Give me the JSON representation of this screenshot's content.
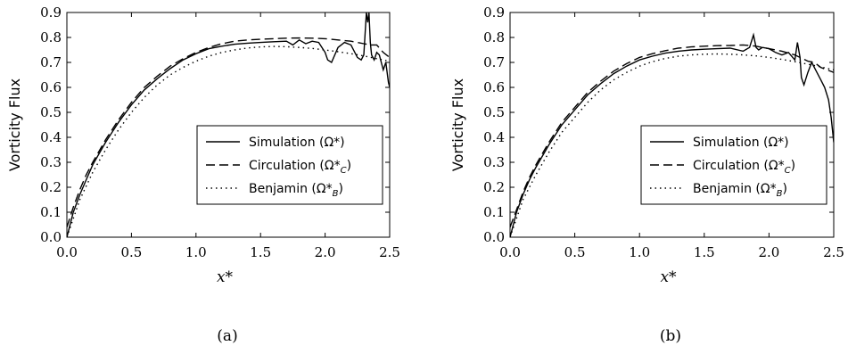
{
  "chart_data": [
    {
      "type": "line",
      "caption": "(a)",
      "xlabel": "x*",
      "ylabel": "Vorticity Flux",
      "xlim": [
        0.0,
        2.5
      ],
      "ylim": [
        0.0,
        0.9
      ],
      "xticks": [
        "0.0",
        "0.5",
        "1.0",
        "1.5",
        "2.0",
        "2.5"
      ],
      "yticks": [
        "0.0",
        "0.1",
        "0.2",
        "0.3",
        "0.4",
        "0.5",
        "0.6",
        "0.7",
        "0.8",
        "0.9"
      ],
      "legend": {
        "placement": "lower-right"
      },
      "series": [
        {
          "name": "Simulation (Ω*)",
          "style": "solid",
          "x": [
            0.0,
            0.05,
            0.1,
            0.15,
            0.2,
            0.3,
            0.4,
            0.5,
            0.6,
            0.7,
            0.8,
            0.9,
            1.0,
            1.1,
            1.2,
            1.3,
            1.4,
            1.5,
            1.6,
            1.7,
            1.75,
            1.8,
            1.85,
            1.9,
            1.95,
            2.0,
            2.02,
            2.05,
            2.1,
            2.15,
            2.2,
            2.25,
            2.28,
            2.3,
            2.32,
            2.33,
            2.34,
            2.35,
            2.36,
            2.38,
            2.4,
            2.42,
            2.45,
            2.47,
            2.49,
            2.5
          ],
          "y": [
            0.0,
            0.1,
            0.17,
            0.23,
            0.29,
            0.38,
            0.46,
            0.53,
            0.59,
            0.635,
            0.675,
            0.71,
            0.735,
            0.755,
            0.765,
            0.773,
            0.777,
            0.78,
            0.783,
            0.785,
            0.77,
            0.79,
            0.775,
            0.785,
            0.78,
            0.74,
            0.71,
            0.7,
            0.76,
            0.78,
            0.77,
            0.72,
            0.71,
            0.73,
            0.9,
            0.86,
            0.9,
            0.78,
            0.73,
            0.71,
            0.74,
            0.73,
            0.67,
            0.7,
            0.62,
            0.6
          ]
        },
        {
          "name": "Circulation (Ω*C)",
          "style": "dashed",
          "x": [
            0.0,
            0.05,
            0.1,
            0.15,
            0.2,
            0.3,
            0.4,
            0.5,
            0.6,
            0.7,
            0.8,
            0.9,
            1.0,
            1.1,
            1.2,
            1.3,
            1.4,
            1.5,
            1.6,
            1.7,
            1.8,
            1.9,
            2.0,
            2.1,
            2.2,
            2.3,
            2.35,
            2.4,
            2.45,
            2.5
          ],
          "y": [
            0.04,
            0.12,
            0.19,
            0.25,
            0.3,
            0.39,
            0.47,
            0.54,
            0.6,
            0.645,
            0.685,
            0.715,
            0.74,
            0.76,
            0.775,
            0.785,
            0.79,
            0.793,
            0.795,
            0.797,
            0.798,
            0.797,
            0.795,
            0.79,
            0.785,
            0.775,
            0.77,
            0.77,
            0.74,
            0.72
          ]
        },
        {
          "name": "Benjamin (Ω*B)",
          "style": "dotted",
          "x": [
            0.0,
            0.1,
            0.2,
            0.3,
            0.4,
            0.5,
            0.6,
            0.7,
            0.8,
            0.9,
            1.0,
            1.1,
            1.2,
            1.3,
            1.4,
            1.5,
            1.6,
            1.7,
            1.8,
            1.9,
            2.0,
            2.1,
            2.2,
            2.3,
            2.4,
            2.5
          ],
          "y": [
            0.0,
            0.15,
            0.26,
            0.35,
            0.43,
            0.5,
            0.56,
            0.61,
            0.65,
            0.68,
            0.705,
            0.725,
            0.74,
            0.75,
            0.758,
            0.762,
            0.764,
            0.763,
            0.76,
            0.756,
            0.75,
            0.743,
            0.735,
            0.726,
            0.715,
            0.705
          ]
        }
      ]
    },
    {
      "type": "line",
      "caption": "(b)",
      "xlabel": "x*",
      "ylabel": "Vorticity Flux",
      "xlim": [
        0.0,
        2.5
      ],
      "ylim": [
        0.0,
        0.9
      ],
      "xticks": [
        "0.0",
        "0.5",
        "1.0",
        "1.5",
        "2.0",
        "2.5"
      ],
      "yticks": [
        "0.0",
        "0.1",
        "0.2",
        "0.3",
        "0.4",
        "0.5",
        "0.6",
        "0.7",
        "0.8",
        "0.9"
      ],
      "legend": {
        "placement": "lower-right"
      },
      "series": [
        {
          "name": "Simulation (Ω*)",
          "style": "solid",
          "x": [
            0.0,
            0.05,
            0.1,
            0.15,
            0.2,
            0.3,
            0.4,
            0.5,
            0.6,
            0.7,
            0.8,
            0.9,
            1.0,
            1.1,
            1.2,
            1.3,
            1.4,
            1.5,
            1.6,
            1.7,
            1.8,
            1.85,
            1.88,
            1.9,
            1.92,
            1.95,
            2.0,
            2.05,
            2.1,
            2.15,
            2.2,
            2.22,
            2.24,
            2.25,
            2.27,
            2.3,
            2.33,
            2.36,
            2.4,
            2.43,
            2.46,
            2.48,
            2.5
          ],
          "y": [
            0.0,
            0.1,
            0.17,
            0.23,
            0.28,
            0.37,
            0.45,
            0.51,
            0.57,
            0.615,
            0.655,
            0.685,
            0.71,
            0.725,
            0.737,
            0.745,
            0.75,
            0.753,
            0.755,
            0.757,
            0.745,
            0.76,
            0.81,
            0.76,
            0.75,
            0.76,
            0.755,
            0.74,
            0.73,
            0.74,
            0.71,
            0.78,
            0.72,
            0.64,
            0.61,
            0.66,
            0.7,
            0.67,
            0.63,
            0.6,
            0.55,
            0.48,
            0.38
          ]
        },
        {
          "name": "Circulation (Ω*C)",
          "style": "dashed",
          "x": [
            0.0,
            0.05,
            0.1,
            0.15,
            0.2,
            0.3,
            0.4,
            0.5,
            0.6,
            0.7,
            0.8,
            0.9,
            1.0,
            1.1,
            1.2,
            1.3,
            1.4,
            1.5,
            1.6,
            1.7,
            1.8,
            1.9,
            2.0,
            2.1,
            2.2,
            2.3,
            2.35,
            2.4,
            2.45,
            2.5
          ],
          "y": [
            0.04,
            0.11,
            0.18,
            0.24,
            0.29,
            0.38,
            0.46,
            0.52,
            0.58,
            0.625,
            0.665,
            0.695,
            0.72,
            0.735,
            0.747,
            0.757,
            0.762,
            0.765,
            0.767,
            0.768,
            0.77,
            0.765,
            0.755,
            0.745,
            0.73,
            0.705,
            0.7,
            0.68,
            0.67,
            0.66
          ]
        },
        {
          "name": "Benjamin (Ω*B)",
          "style": "dotted",
          "x": [
            0.0,
            0.1,
            0.2,
            0.3,
            0.4,
            0.5,
            0.6,
            0.7,
            0.8,
            0.9,
            1.0,
            1.1,
            1.2,
            1.3,
            1.4,
            1.5,
            1.6,
            1.7,
            1.8,
            1.9,
            2.0,
            2.1,
            2.2,
            2.3,
            2.4,
            2.5
          ],
          "y": [
            0.0,
            0.15,
            0.25,
            0.34,
            0.42,
            0.48,
            0.54,
            0.59,
            0.63,
            0.66,
            0.685,
            0.703,
            0.716,
            0.725,
            0.73,
            0.733,
            0.734,
            0.733,
            0.73,
            0.726,
            0.72,
            0.712,
            0.703,
            0.693,
            0.682,
            0.67
          ]
        }
      ]
    }
  ]
}
